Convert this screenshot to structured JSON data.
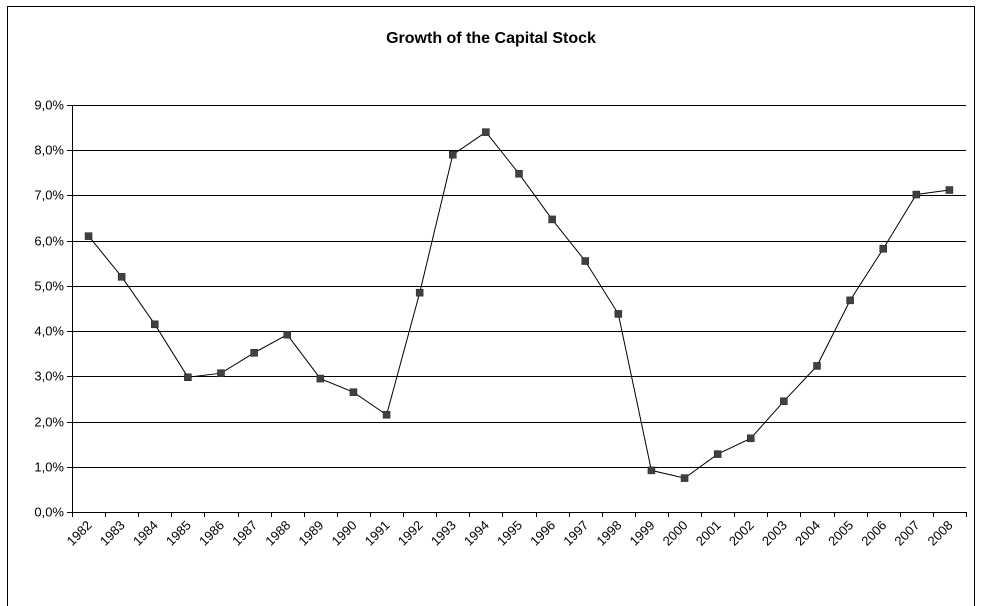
{
  "chart_data": {
    "type": "line",
    "title": "Growth of the Capital Stock",
    "xlabel": "",
    "ylabel": "",
    "categories": [
      "1982",
      "1983",
      "1984",
      "1985",
      "1986",
      "1987",
      "1988",
      "1989",
      "1990",
      "1991",
      "1992",
      "1993",
      "1994",
      "1995",
      "1996",
      "1997",
      "1998",
      "1999",
      "2000",
      "2001",
      "2002",
      "2003",
      "2004",
      "2005",
      "2006",
      "2007",
      "2008"
    ],
    "series": [
      {
        "values": [
          6.1,
          5.2,
          4.15,
          2.98,
          3.07,
          3.52,
          3.92,
          2.95,
          2.65,
          2.15,
          4.85,
          7.9,
          8.4,
          7.48,
          6.47,
          5.55,
          4.38,
          0.92,
          0.75,
          1.28,
          1.63,
          2.45,
          3.23,
          4.68,
          5.82,
          7.02,
          7.12
        ]
      }
    ],
    "ylim": [
      0,
      9
    ],
    "yticks": [
      0,
      1,
      2,
      3,
      4,
      5,
      6,
      7,
      8,
      9
    ],
    "ytick_labels": [
      "0,0%",
      "1,0%",
      "2,0%",
      "3,0%",
      "4,0%",
      "5,0%",
      "6,0%",
      "7,0%",
      "8,0%",
      "9,0%"
    ],
    "grid": "horizontal",
    "legend": "none",
    "colors": {
      "line": "#000000",
      "marker": "#404040",
      "grid": "#000000"
    }
  }
}
